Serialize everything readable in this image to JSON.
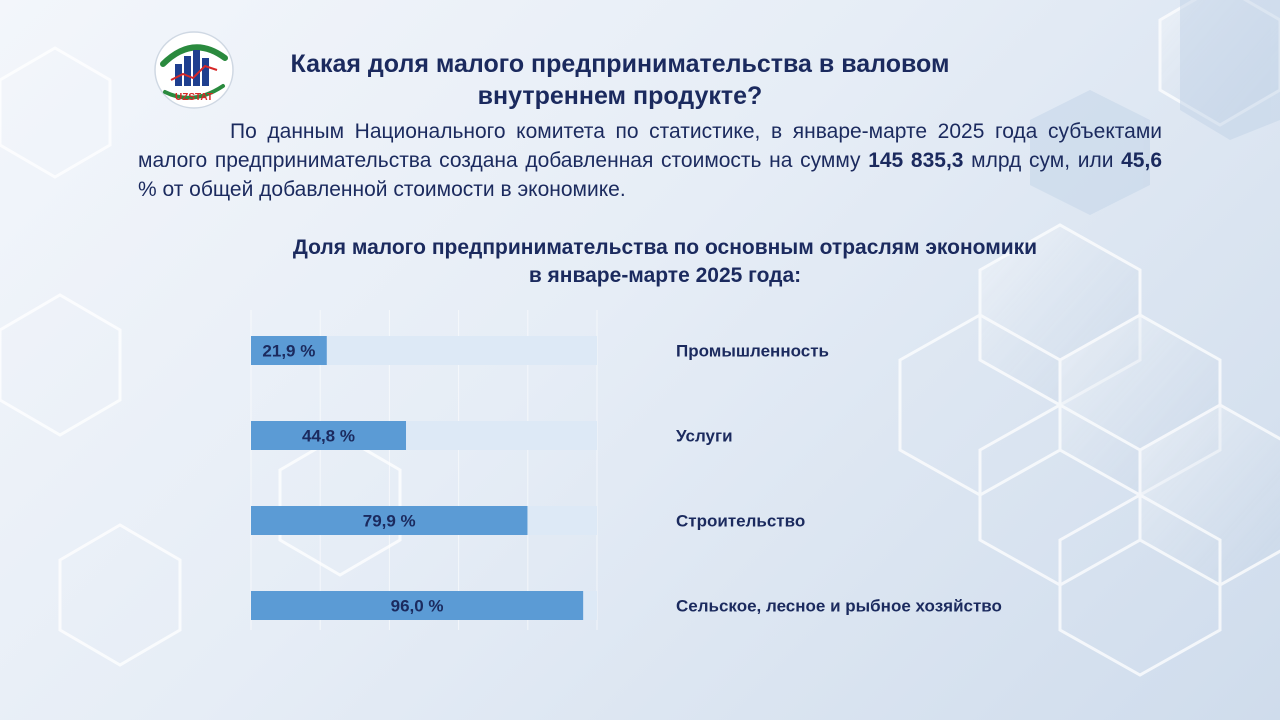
{
  "logo": {
    "text": "UZSTAT",
    "accent_blue": "#1f3f8f",
    "accent_green": "#2a8a3e",
    "accent_red": "#d62828"
  },
  "title": "Какая доля малого предпринимательства в валовом внутреннем продукте?",
  "intro": {
    "part1": "По данным Национального комитета по статистике, в январе-марте 2025 года субъектами малого предпринимательства создана добавленная стоимость на сумму ",
    "amount": "145 835,3",
    "part2": " млрд сум, или ",
    "share": "45,6",
    "part3": " % от общей добавленной стоимости в экономике."
  },
  "chart_data": {
    "type": "bar",
    "orientation": "horizontal",
    "title_line1": "Доля малого предпринимательства по основным отраслям экономики",
    "title_line2": "в январе-марте 2025 года:",
    "categories": [
      "Промышленность",
      "Услуги",
      "Строительство",
      "Сельское, лесное и рыбное хозяйство"
    ],
    "values": [
      21.9,
      44.8,
      79.9,
      96.0
    ],
    "value_labels": [
      "21,9 %",
      "44,8 %",
      "79,9 %",
      "96,0 %"
    ],
    "xlim": [
      0,
      100
    ],
    "bar_color": "#5b9bd5",
    "track_color": "#dde9f6",
    "label_color": "#1b2a5e"
  }
}
